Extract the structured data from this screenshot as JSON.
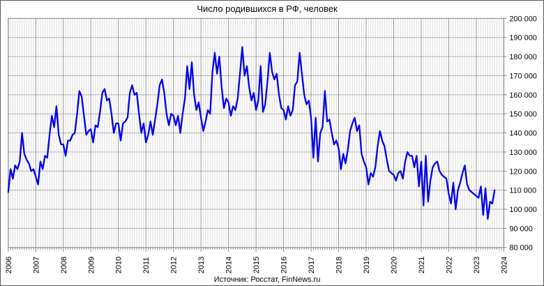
{
  "title": "Число родившихся в РФ, человек",
  "footer_source": "Источник: Росстат, FinNews.ru",
  "chart_data": {
    "type": "line",
    "title": "Число родившихся в РФ, человек",
    "xlabel": "",
    "ylabel": "",
    "frequency": "monthly",
    "x_start": "2006-01",
    "x_end": "2023-09",
    "x_axis_year_ticks": [
      2006,
      2007,
      2008,
      2009,
      2010,
      2011,
      2012,
      2013,
      2014,
      2015,
      2016,
      2017,
      2018,
      2019,
      2020,
      2021,
      2022,
      2023,
      2024
    ],
    "ylim": [
      80000,
      200000
    ],
    "ytick_step": 10000,
    "ytick_labels_ascending": [
      "80 000",
      "90 000",
      "100 000",
      "110 000",
      "120 000",
      "130 000",
      "140 000",
      "150 000",
      "160 000",
      "170 000",
      "180 000",
      "190 000",
      "200 000"
    ],
    "grid": "vertical minor monthly, vertical major yearly, horizontal every 10000",
    "legend_position": "none",
    "line_color": "#0000e8",
    "source_note": "Источник: Росстат, FinNews.ru",
    "series": [
      {
        "name": "Число родившихся в РФ, человек",
        "values": [
          109000,
          121000,
          116000,
          123000,
          121000,
          125000,
          140000,
          129000,
          126000,
          124000,
          120000,
          121000,
          117000,
          113000,
          125000,
          121000,
          128000,
          127000,
          139000,
          149000,
          143000,
          154000,
          139000,
          134000,
          134000,
          128000,
          136000,
          136000,
          139000,
          140000,
          150000,
          162000,
          159000,
          149000,
          139000,
          141000,
          142000,
          135000,
          144000,
          143000,
          151000,
          161000,
          163000,
          157000,
          158000,
          150000,
          140000,
          145000,
          145000,
          136000,
          145000,
          146000,
          148000,
          161000,
          165000,
          160000,
          161000,
          150000,
          140000,
          145000,
          135000,
          139000,
          146000,
          139000,
          147000,
          155000,
          165000,
          168000,
          161000,
          150000,
          144000,
          150000,
          149000,
          144000,
          149000,
          140000,
          150000,
          158000,
          175000,
          163000,
          177000,
          160000,
          152000,
          156000,
          148000,
          141000,
          146000,
          152000,
          150000,
          172000,
          182000,
          171000,
          180000,
          164000,
          153000,
          158000,
          156000,
          149000,
          154000,
          152000,
          158000,
          171000,
          185000,
          170000,
          175000,
          164000,
          157000,
          161000,
          152000,
          157000,
          175000,
          151000,
          155000,
          167000,
          182000,
          172000,
          168000,
          171000,
          160000,
          153000,
          152000,
          147000,
          154000,
          149000,
          152000,
          165000,
          167000,
          182000,
          171000,
          160000,
          155000,
          157000,
          148000,
          127000,
          148000,
          125000,
          140000,
          143000,
          162000,
          146000,
          147000,
          140000,
          134000,
          136000,
          132000,
          121000,
          129000,
          124000,
          131000,
          141000,
          145000,
          148000,
          141000,
          144000,
          129000,
          125000,
          122000,
          113000,
          119000,
          117000,
          122000,
          133000,
          141000,
          136000,
          133000,
          126000,
          120000,
          119000,
          118000,
          115000,
          119000,
          120000,
          116000,
          125000,
          130000,
          128000,
          128000,
          122000,
          128000,
          112000,
          125000,
          102000,
          128000,
          104000,
          115000,
          122000,
          124000,
          125000,
          120000,
          118000,
          117000,
          116000,
          108000,
          103000,
          114000,
          100000,
          110000,
          114000,
          119000,
          123000,
          113000,
          110000,
          109000,
          108000,
          107000,
          106000,
          112000,
          97000,
          111000,
          95000,
          104000,
          103000,
          110000
        ]
      }
    ]
  }
}
